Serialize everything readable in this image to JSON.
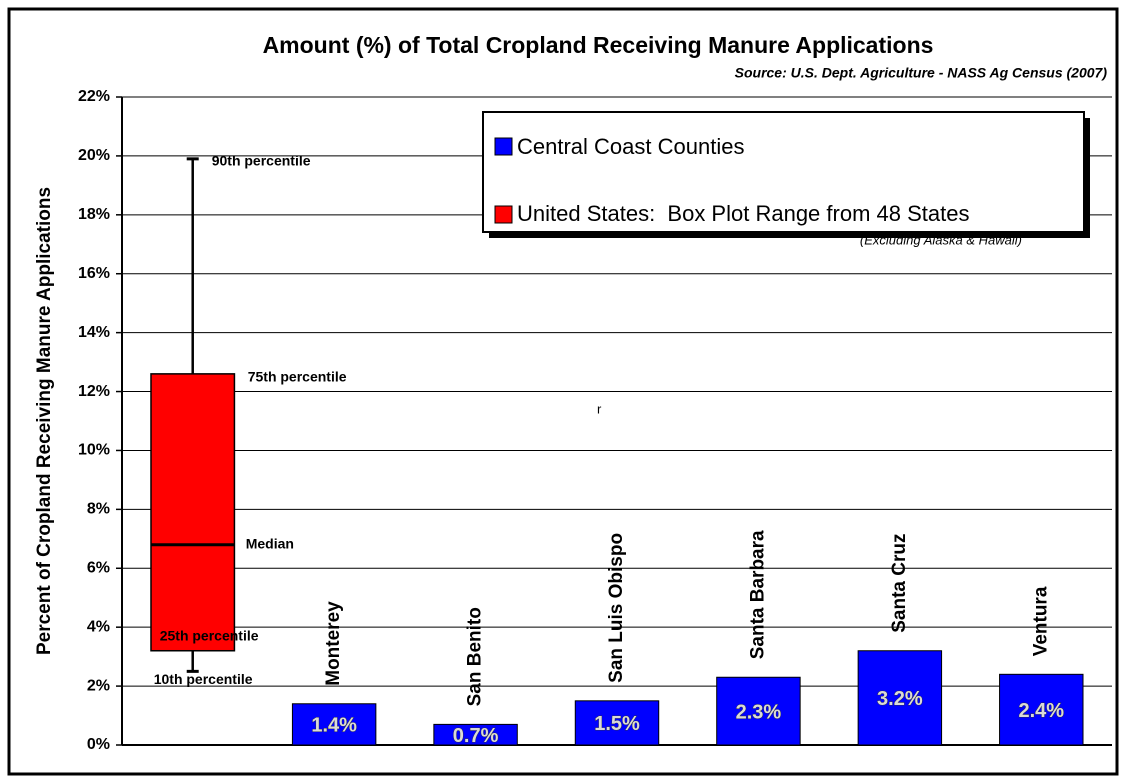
{
  "chart_data": {
    "type": "bar",
    "title": "Amount (%) of Total Cropland Receiving Manure Applications",
    "subtitle": "Source: U.S. Dept. Agriculture - NASS Ag Census (2007)",
    "y_label": "Percent of Cropland Receiving Manure Applications",
    "categories": [
      null,
      "Monterey",
      "San Benito",
      "San Luis Obispo",
      "Santa Barbara",
      "Santa Cruz",
      "Ventura"
    ],
    "series": [
      {
        "name": "Central Coast Counties",
        "color": "#0000ff",
        "values": [
          null,
          1.4,
          0.7,
          1.5,
          2.3,
          3.2,
          2.4
        ],
        "value_labels": [
          null,
          "1.4%",
          "0.7%",
          "1.5%",
          "2.3%",
          "3.2%",
          "2.4%"
        ]
      }
    ],
    "box": {
      "name": "United States:  Box Plot Range from 48 States",
      "note": "(Excluding Alaska & Hawaii)",
      "color": "#ff0000",
      "category_index": 0,
      "p10": 2.5,
      "p25": 3.2,
      "median": 6.8,
      "p75": 12.6,
      "p90": 19.9,
      "labels": {
        "p10": "10th percentile",
        "p25": "25th percentile",
        "median": "Median",
        "p75": "75th percentile",
        "p90": "90th percentile"
      }
    },
    "annotations": [
      "r"
    ],
    "ylim": [
      0,
      22
    ],
    "yticks": [
      {
        "value": 0,
        "label": "0%"
      },
      {
        "value": 2,
        "label": "2%"
      },
      {
        "value": 4,
        "label": "4%"
      },
      {
        "value": 6,
        "label": "6%"
      },
      {
        "value": 8,
        "label": "8%"
      },
      {
        "value": 10,
        "label": "10%"
      },
      {
        "value": 12,
        "label": "12%"
      },
      {
        "value": 14,
        "label": "14%"
      },
      {
        "value": 16,
        "label": "16%"
      },
      {
        "value": 18,
        "label": "18%"
      },
      {
        "value": 20,
        "label": "20%"
      },
      {
        "value": 22,
        "label": "22%"
      }
    ],
    "grid": true,
    "legend": "upper right"
  }
}
